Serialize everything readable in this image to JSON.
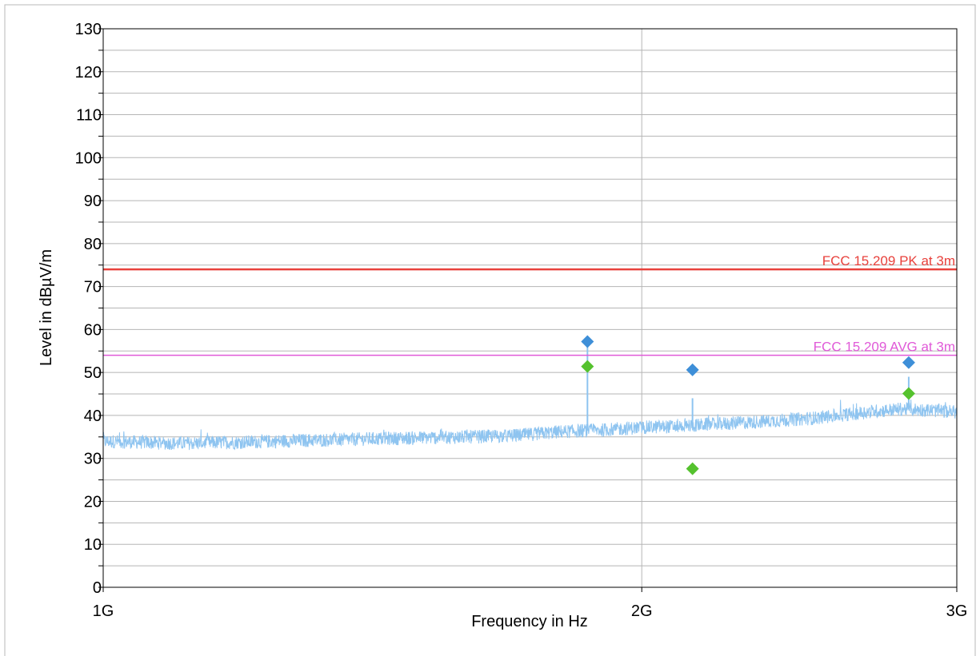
{
  "chart_data": {
    "type": "line",
    "xlabel": "Frequency in Hz",
    "ylabel": "Level in dBµV/m",
    "x_scale": "log",
    "xlim": [
      1000000000,
      3000000000
    ],
    "ylim": [
      0,
      130
    ],
    "x_ticks": [
      {
        "value": 1000000000,
        "label": "1G"
      },
      {
        "value": 2000000000,
        "label": "2G"
      },
      {
        "value": 3000000000,
        "label": "3G"
      }
    ],
    "y_ticks": [
      {
        "value": 0,
        "label": "0"
      },
      {
        "value": 10,
        "label": "10"
      },
      {
        "value": 20,
        "label": "20"
      },
      {
        "value": 30,
        "label": "30"
      },
      {
        "value": 40,
        "label": "40"
      },
      {
        "value": 50,
        "label": "50"
      },
      {
        "value": 60,
        "label": "60"
      },
      {
        "value": 70,
        "label": "70"
      },
      {
        "value": 80,
        "label": "80"
      },
      {
        "value": 90,
        "label": "90"
      },
      {
        "value": 100,
        "label": "100"
      },
      {
        "value": 110,
        "label": "110"
      },
      {
        "value": 120,
        "label": "120"
      },
      {
        "value": 130,
        "label": "130"
      }
    ],
    "grid": true,
    "limit_lines": [
      {
        "name": "FCC 15.209 PK at 3m",
        "value": 74,
        "color": "#e8413c"
      },
      {
        "name": "FCC 15.209 AVG at 3m",
        "value": 54,
        "color": "#e05ad8"
      }
    ],
    "trace": {
      "color": "#8ec4f0",
      "points": [
        [
          1000000000,
          34
        ],
        [
          1100000000,
          33.5
        ],
        [
          1200000000,
          33.8
        ],
        [
          1300000000,
          34.2
        ],
        [
          1400000000,
          34.5
        ],
        [
          1500000000,
          34.8
        ],
        [
          1600000000,
          35
        ],
        [
          1700000000,
          35.3
        ],
        [
          1800000000,
          36.2
        ],
        [
          1900000000,
          36.6
        ],
        [
          2000000000,
          37.2
        ],
        [
          2100000000,
          37.5
        ],
        [
          2200000000,
          38
        ],
        [
          2300000000,
          38.4
        ],
        [
          2400000000,
          38.9
        ],
        [
          2500000000,
          39.4
        ],
        [
          2600000000,
          40.2
        ],
        [
          2700000000,
          41
        ],
        [
          2800000000,
          41.5
        ],
        [
          2900000000,
          41.2
        ],
        [
          3000000000,
          40.8
        ]
      ],
      "spikes": [
        [
          1865000000,
          57
        ],
        [
          2135000000,
          44
        ],
        [
          2820000000,
          49
        ]
      ]
    },
    "peak_markers": {
      "color": "#3e8fd8",
      "points": [
        [
          1865000000,
          57.2
        ],
        [
          2135000000,
          50.6
        ],
        [
          2820000000,
          52.3
        ]
      ]
    },
    "avg_markers": {
      "color": "#55c22e",
      "points": [
        [
          1865000000,
          51.4
        ],
        [
          2135000000,
          27.6
        ],
        [
          2820000000,
          45.1
        ]
      ]
    }
  }
}
